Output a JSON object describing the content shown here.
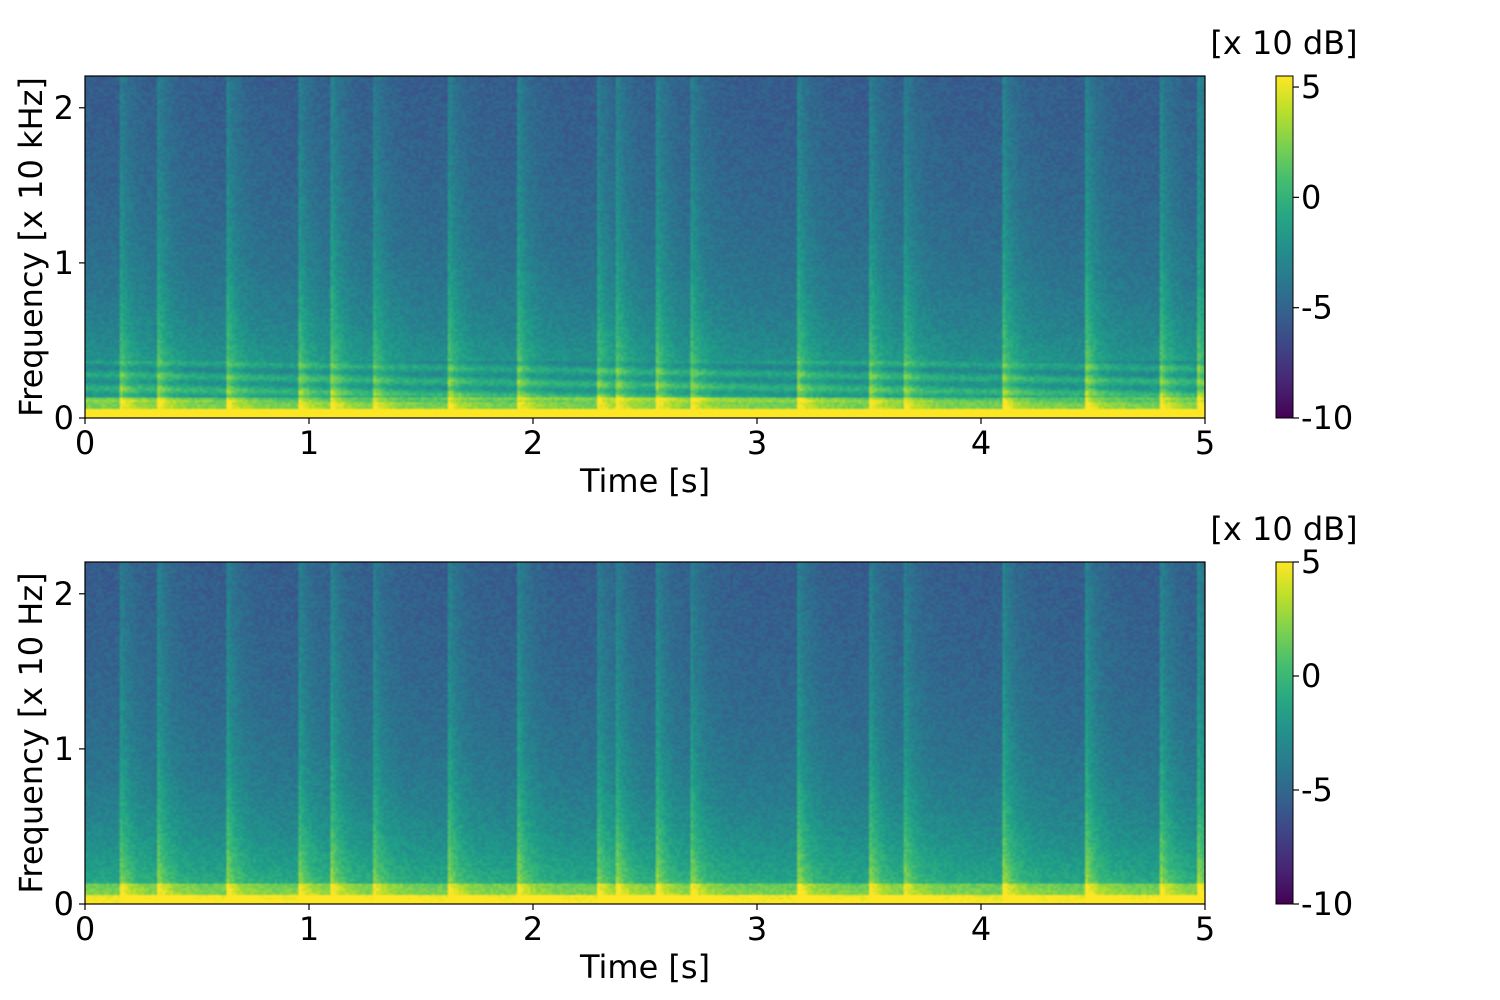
{
  "colors": {
    "colormap": "viridis",
    "background": "#ffffff",
    "axis": "#000000"
  },
  "chart_data": [
    {
      "type": "heatmap",
      "title": "",
      "xlabel": "Time [s]",
      "ylabel": "Frequency [x 10 kHz]",
      "x_ticks": [
        "0",
        "1",
        "2",
        "3",
        "4",
        "5"
      ],
      "x_tick_values": [
        0,
        1,
        2,
        3,
        4,
        5
      ],
      "y_ticks": [
        "0",
        "1",
        "2"
      ],
      "y_tick_values": [
        0,
        1,
        2
      ],
      "xlim": [
        0,
        5
      ],
      "ylim": [
        0,
        2.205
      ],
      "colorbar": {
        "label": "[x 10 dB]",
        "ticks": [
          "5",
          "0",
          "-5",
          "-10"
        ],
        "tick_values": [
          5,
          0,
          -5,
          -10
        ],
        "range": [
          -10,
          5.5
        ]
      },
      "onsets_s": [
        0.15,
        0.32,
        0.63,
        0.95,
        1.1,
        1.28,
        1.62,
        1.93,
        2.28,
        2.37,
        2.55,
        2.7,
        3.18,
        3.5,
        3.65,
        4.1,
        4.47,
        4.8,
        4.97
      ],
      "grid": false
    },
    {
      "type": "heatmap",
      "title": "",
      "xlabel": "Time [s]",
      "ylabel": "Frequency [x 10 Hz]",
      "x_ticks": [
        "0",
        "1",
        "2",
        "3",
        "4",
        "5"
      ],
      "x_tick_values": [
        0,
        1,
        2,
        3,
        4,
        5
      ],
      "y_ticks": [
        "0",
        "1",
        "2"
      ],
      "y_tick_values": [
        0,
        1,
        2
      ],
      "xlim": [
        0,
        5
      ],
      "ylim": [
        0,
        2.205
      ],
      "colorbar": {
        "label": "[x 10 dB]",
        "ticks": [
          "5",
          "0",
          "-5",
          "-10"
        ],
        "tick_values": [
          5,
          0,
          -5,
          -10
        ],
        "range": [
          -10,
          5
        ]
      },
      "onsets_s": [
        0.15,
        0.32,
        0.63,
        0.95,
        1.1,
        1.28,
        1.62,
        1.93,
        2.28,
        2.37,
        2.55,
        2.7,
        3.18,
        3.5,
        3.65,
        4.1,
        4.47,
        4.8,
        4.97
      ],
      "grid": false
    }
  ]
}
